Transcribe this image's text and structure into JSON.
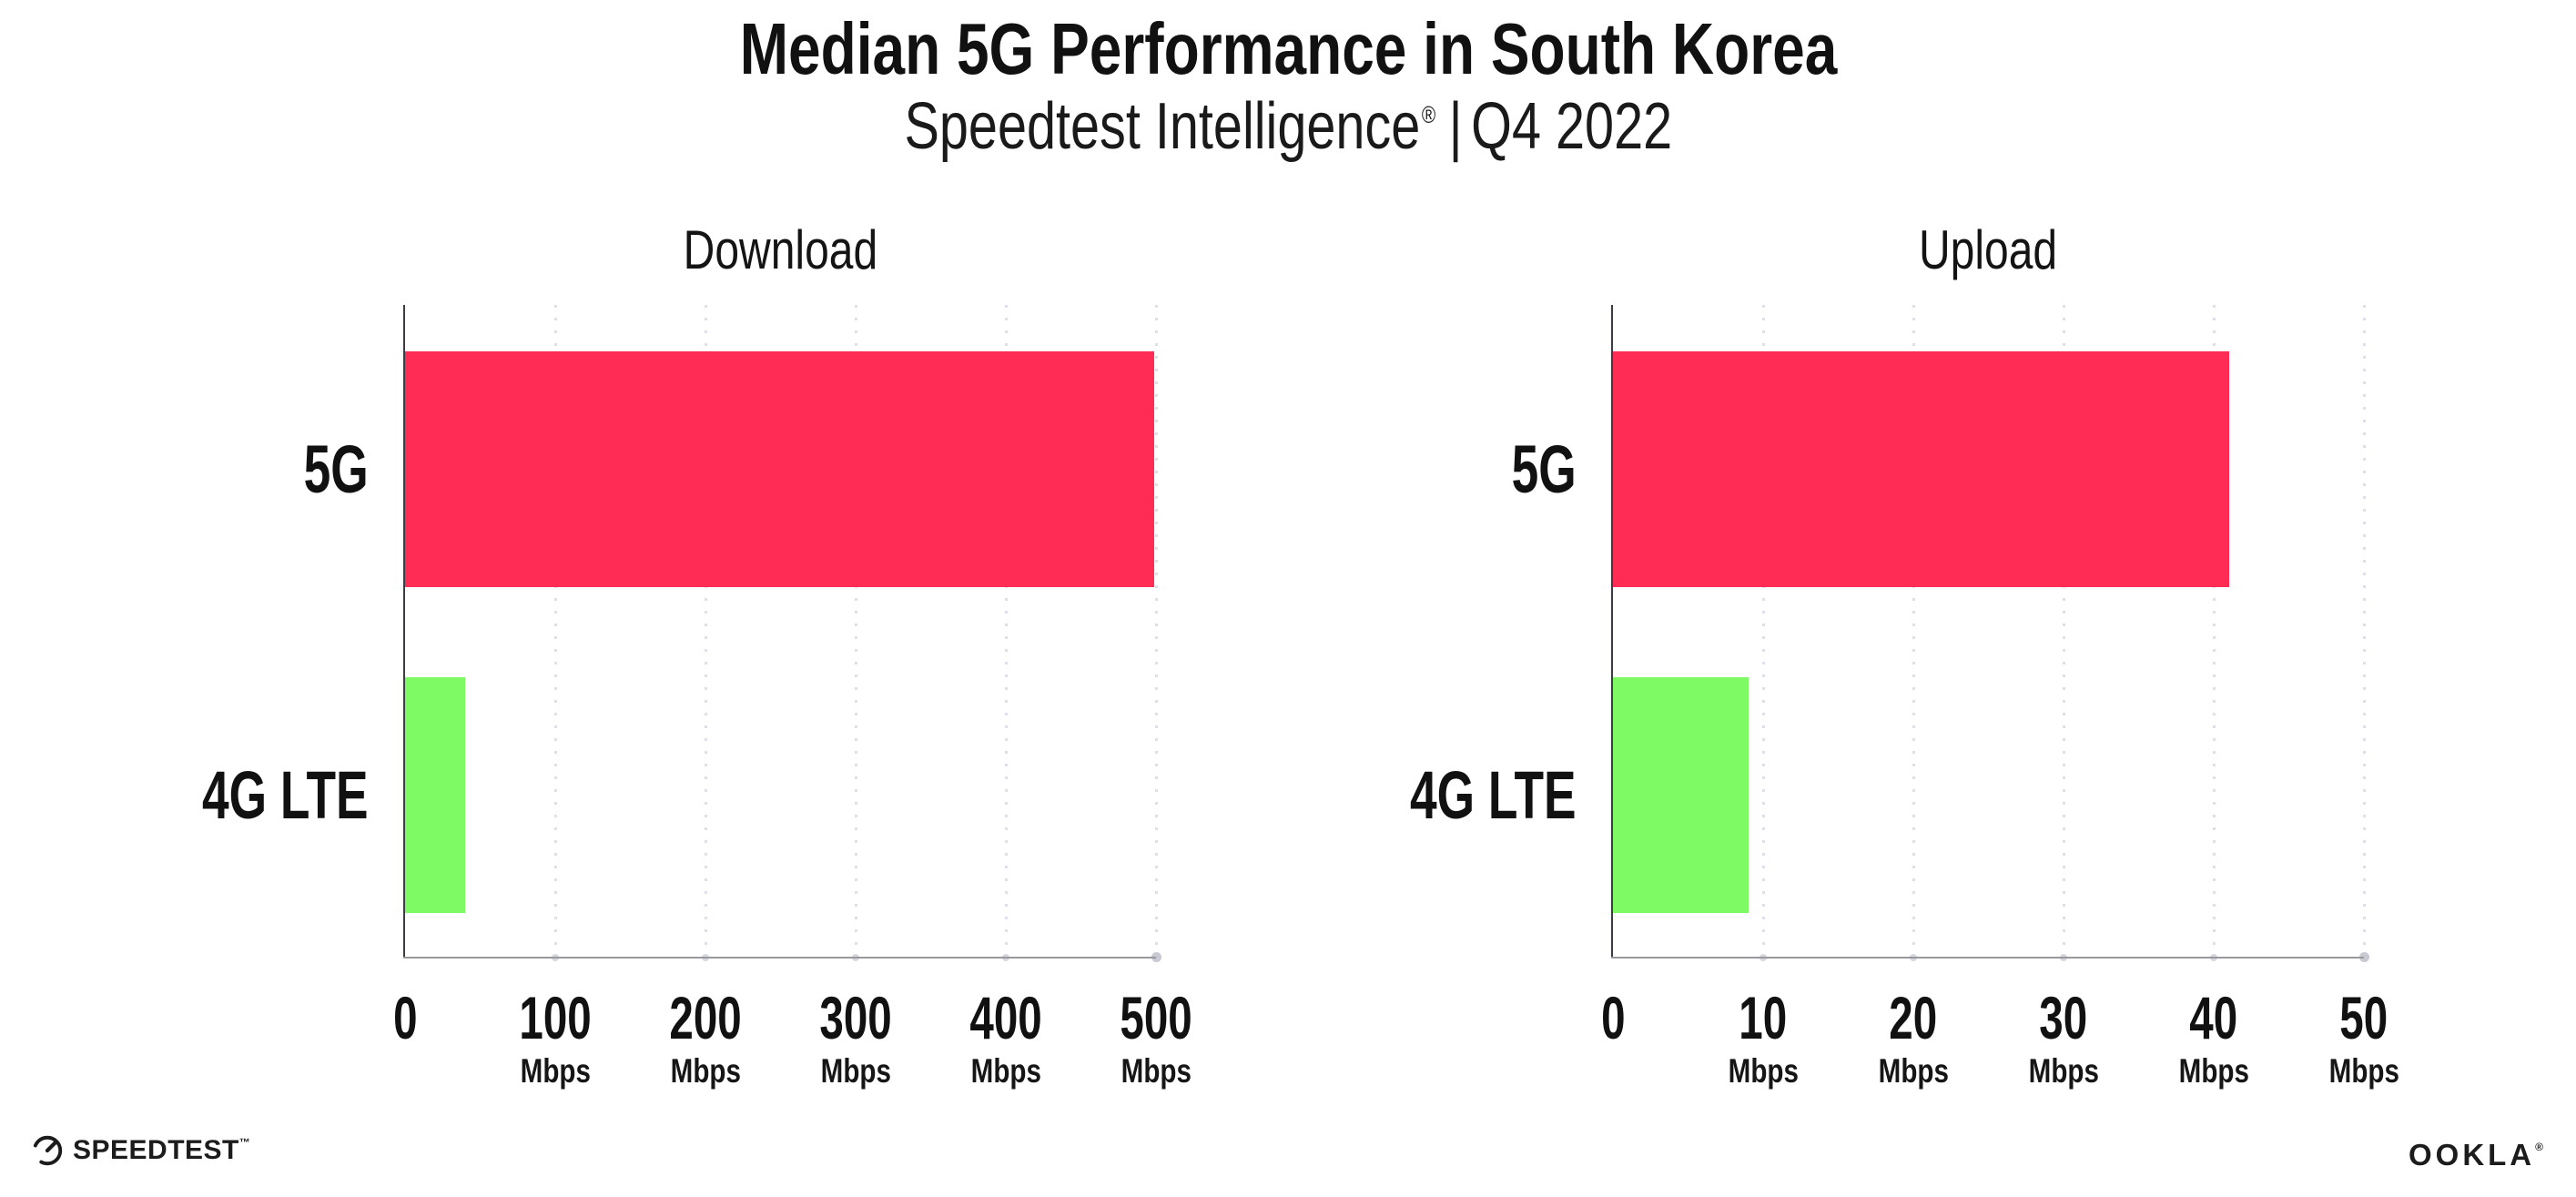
{
  "header": {
    "title": "Median 5G Performance in South Korea",
    "subtitle_brand": "Speedtest Intelligence",
    "subtitle_reg_mark": "®",
    "subtitle_separator": "|",
    "subtitle_period": "Q4 2022"
  },
  "footer": {
    "speedtest_label": "SPEEDTEST",
    "speedtest_trademark": "™",
    "ookla_label": "OOKLA",
    "ookla_reg_mark": "®",
    "speedtest_icon": "speedtest-gauge-icon"
  },
  "colors": {
    "bar_5g": "#FF2D55",
    "bar_4g_lte": "#7DFA64",
    "text": "#111111",
    "y_axis_line": "#3c3c44",
    "x_axis_line": "#98989e",
    "gridline": "#dfdfe9",
    "background": "#ffffff"
  },
  "chart_data": [
    {
      "type": "bar",
      "orientation": "horizontal",
      "title": "Download",
      "categories": [
        "5G",
        "4G LTE"
      ],
      "values": [
        499,
        40
      ],
      "unit": "Mbps",
      "xlim": [
        0,
        500
      ],
      "xticks": [
        0,
        100,
        200,
        300,
        400,
        500
      ],
      "tick_unit_label": "Mbps",
      "bar_colors": [
        "#FF2D55",
        "#7DFA64"
      ],
      "grid": "dotted-vertical",
      "legend": "none"
    },
    {
      "type": "bar",
      "orientation": "horizontal",
      "title": "Upload",
      "categories": [
        "5G",
        "4G LTE"
      ],
      "values": [
        41,
        9
      ],
      "unit": "Mbps",
      "xlim": [
        0,
        50
      ],
      "xticks": [
        0,
        10,
        20,
        30,
        40,
        50
      ],
      "tick_unit_label": "Mbps",
      "bar_colors": [
        "#FF2D55",
        "#7DFA64"
      ],
      "grid": "dotted-vertical",
      "legend": "none"
    }
  ]
}
